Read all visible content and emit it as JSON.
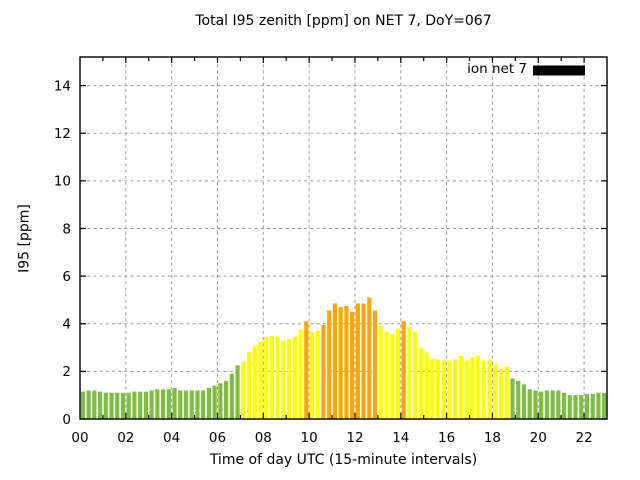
{
  "chart_data": {
    "type": "bar",
    "title": "Total I95 zenith [ppm] on NET 7, DoY=067",
    "xlabel": "Time of day UTC (15-minute intervals)",
    "ylabel": "I95 [ppm]",
    "legend": {
      "label": "ion net 7",
      "swatch_color": "#000000",
      "position": "top-right-inside"
    },
    "grid": true,
    "interval_minutes": 15,
    "xlim_hours": [
      0,
      23
    ],
    "ylim": [
      0,
      15.2
    ],
    "x_tick_hours": [
      0,
      2,
      4,
      6,
      8,
      10,
      12,
      14,
      16,
      18,
      20,
      22
    ],
    "x_tick_labels": [
      "00",
      "02",
      "04",
      "06",
      "08",
      "10",
      "12",
      "14",
      "16",
      "18",
      "20",
      "22"
    ],
    "x_minor_tick_every_hours": 1,
    "y_ticks": [
      0,
      2,
      4,
      6,
      8,
      10,
      12,
      14
    ],
    "color_codes": {
      "g": "#7dbe42",
      "y": "#ffff00",
      "o": "#ffa500"
    },
    "series": [
      {
        "name": "ion net 7",
        "times": [
          "00:00",
          "00:15",
          "00:30",
          "00:45",
          "01:00",
          "01:15",
          "01:30",
          "01:45",
          "02:00",
          "02:15",
          "02:30",
          "02:45",
          "03:00",
          "03:15",
          "03:30",
          "03:45",
          "04:00",
          "04:15",
          "04:30",
          "04:45",
          "05:00",
          "05:15",
          "05:30",
          "05:45",
          "06:00",
          "06:15",
          "06:30",
          "06:45",
          "07:00",
          "07:15",
          "07:30",
          "07:45",
          "08:00",
          "08:15",
          "08:30",
          "08:45",
          "09:00",
          "09:15",
          "09:30",
          "09:45",
          "10:00",
          "10:15",
          "10:30",
          "10:45",
          "11:00",
          "11:15",
          "11:30",
          "11:45",
          "12:00",
          "12:15",
          "12:30",
          "12:45",
          "13:00",
          "13:15",
          "13:30",
          "13:45",
          "14:00",
          "14:15",
          "14:30",
          "14:45",
          "15:00",
          "15:15",
          "15:30",
          "15:45",
          "16:00",
          "16:15",
          "16:30",
          "16:45",
          "17:00",
          "17:15",
          "17:30",
          "17:45",
          "18:00",
          "18:15",
          "18:30",
          "18:45",
          "19:00",
          "19:15",
          "19:30",
          "19:45",
          "20:00",
          "20:15",
          "20:30",
          "20:45",
          "21:00",
          "21:15",
          "21:30",
          "21:45",
          "22:00",
          "22:15",
          "22:30",
          "22:45"
        ],
        "values": [
          1.15,
          1.2,
          1.2,
          1.15,
          1.1,
          1.1,
          1.1,
          1.1,
          1.1,
          1.15,
          1.15,
          1.15,
          1.2,
          1.25,
          1.25,
          1.25,
          1.3,
          1.2,
          1.2,
          1.2,
          1.2,
          1.2,
          1.3,
          1.4,
          1.5,
          1.6,
          1.9,
          2.25,
          2.4,
          2.8,
          3.05,
          3.25,
          3.45,
          3.5,
          3.45,
          3.3,
          3.35,
          3.45,
          3.75,
          4.1,
          3.65,
          3.7,
          3.95,
          4.55,
          4.85,
          4.7,
          4.75,
          4.5,
          4.85,
          4.85,
          5.1,
          4.55,
          3.9,
          3.65,
          3.55,
          3.8,
          4.1,
          3.85,
          3.65,
          3.0,
          2.8,
          2.55,
          2.5,
          2.45,
          2.45,
          2.5,
          2.65,
          2.45,
          2.6,
          2.65,
          2.45,
          2.5,
          2.3,
          2.1,
          2.2,
          1.7,
          1.6,
          1.45,
          1.25,
          1.2,
          1.15,
          1.2,
          1.2,
          1.2,
          1.1,
          1.0,
          1.0,
          1.0,
          1.05,
          1.05,
          1.1,
          1.1
        ],
        "colors": [
          "g",
          "g",
          "g",
          "g",
          "g",
          "g",
          "g",
          "g",
          "g",
          "g",
          "g",
          "g",
          "g",
          "g",
          "g",
          "g",
          "g",
          "g",
          "g",
          "g",
          "g",
          "g",
          "g",
          "g",
          "g",
          "g",
          "g",
          "g",
          "y",
          "y",
          "y",
          "y",
          "y",
          "y",
          "y",
          "y",
          "y",
          "y",
          "y",
          "o",
          "y",
          "y",
          "o",
          "o",
          "o",
          "o",
          "o",
          "o",
          "o",
          "o",
          "o",
          "o",
          "y",
          "y",
          "y",
          "y",
          "o",
          "y",
          "y",
          "y",
          "y",
          "y",
          "y",
          "y",
          "y",
          "y",
          "y",
          "y",
          "y",
          "y",
          "y",
          "y",
          "y",
          "y",
          "y",
          "g",
          "g",
          "g",
          "g",
          "g",
          "g",
          "g",
          "g",
          "g",
          "g",
          "g",
          "g",
          "g",
          "g",
          "g",
          "g",
          "g"
        ]
      }
    ]
  },
  "palette": {
    "axis": "#000000",
    "grid": "#999999",
    "text": "#000000",
    "background": "#ffffff"
  }
}
